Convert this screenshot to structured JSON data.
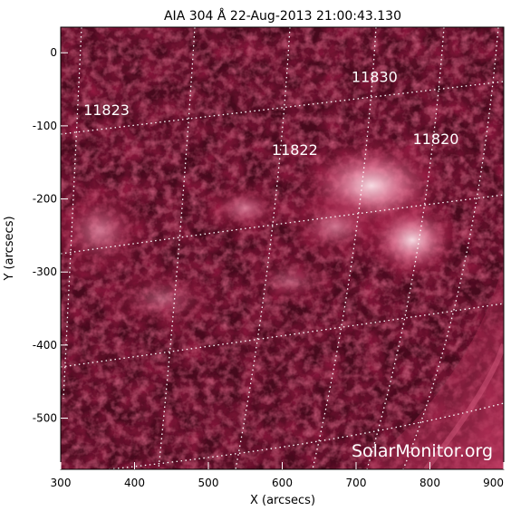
{
  "figure": {
    "title": "AIA 304 Å 22-Aug-2013 21:00:43.130",
    "xlabel": "X (arcsecs)",
    "ylabel": "Y (arcsecs)",
    "watermark": "SolarMonitor.org",
    "xlim": [
      300,
      900
    ],
    "ylim": [
      -570,
      35
    ],
    "x_ticks": [
      300,
      400,
      500,
      600,
      700,
      800,
      900
    ],
    "y_ticks": [
      0,
      -100,
      -200,
      -300,
      -400,
      -500
    ],
    "colors": {
      "background": "#2a0612",
      "mid": "#8a1a3c",
      "bright": "#f4c9d6",
      "grid": "#ffffff",
      "label_text": "#ffffff"
    },
    "regions": [
      {
        "number": "11830",
        "x": 725,
        "y": -40
      },
      {
        "number": "11823",
        "x": 362,
        "y": -85
      },
      {
        "number": "11822",
        "x": 617,
        "y": -140
      },
      {
        "number": "11820",
        "x": 808,
        "y": -125
      }
    ]
  }
}
